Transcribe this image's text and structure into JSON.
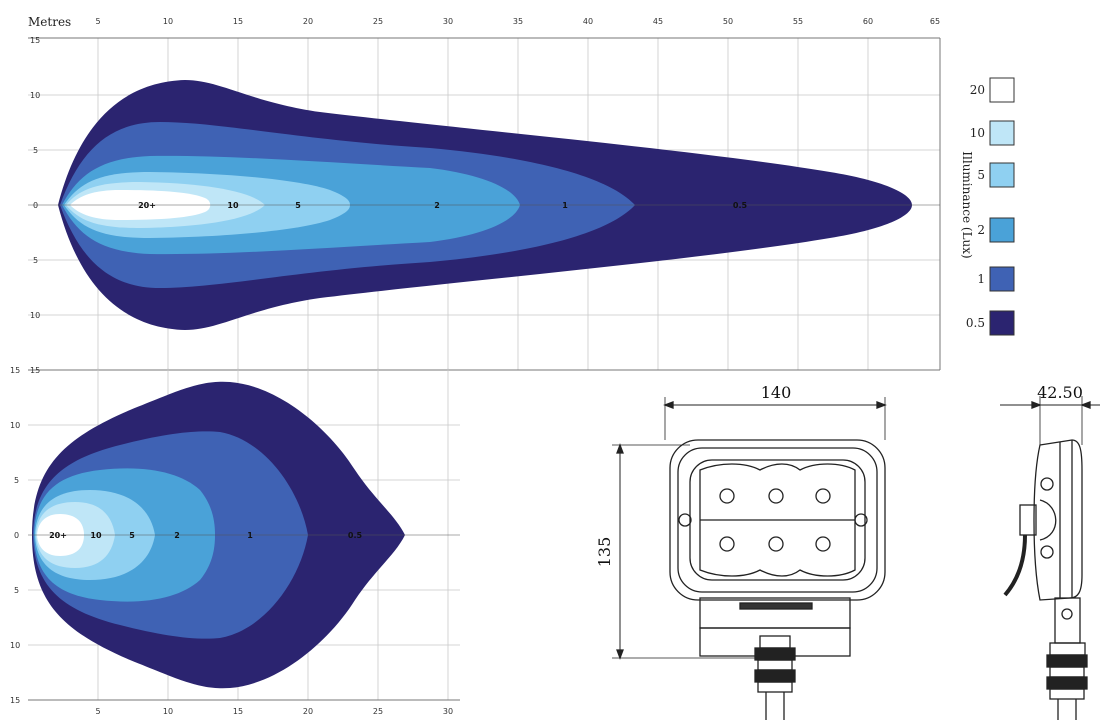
{
  "top_chart": {
    "x_unit_label": "Metres",
    "x_ticks": [
      "5",
      "10",
      "15",
      "20",
      "25",
      "30",
      "35",
      "40",
      "45",
      "50",
      "55",
      "60",
      "65"
    ],
    "y_ticks": [
      "15",
      "10",
      "5",
      "0",
      "5",
      "10",
      "15"
    ],
    "zone_labels": [
      "20+",
      "10",
      "5",
      "2",
      "1",
      "0.5"
    ],
    "x_range": [
      0,
      66
    ],
    "y_range": [
      -15,
      15
    ]
  },
  "bottom_chart": {
    "x_ticks": [
      "5",
      "10",
      "15",
      "20",
      "25",
      "30"
    ],
    "y_ticks": [
      "15",
      "10",
      "5",
      "0",
      "5",
      "10",
      "15"
    ],
    "zone_labels": [
      "20+",
      "10",
      "5",
      "2",
      "1",
      "0.5"
    ],
    "x_range": [
      0,
      31
    ],
    "y_range": [
      -15,
      15
    ]
  },
  "legend": {
    "title": "Illuminance (Lux)",
    "items": [
      {
        "label": "20",
        "color": "#ffffff"
      },
      {
        "label": "10",
        "color": "#bfe6f7"
      },
      {
        "label": "5",
        "color": "#8fd0f1"
      },
      {
        "label": "2",
        "color": "#4aa2d8"
      },
      {
        "label": "1",
        "color": "#3f62b4"
      },
      {
        "label": "0.5",
        "color": "#2b2470"
      }
    ]
  },
  "dimensions": {
    "width": "140",
    "height": "135",
    "depth": "42.50"
  }
}
